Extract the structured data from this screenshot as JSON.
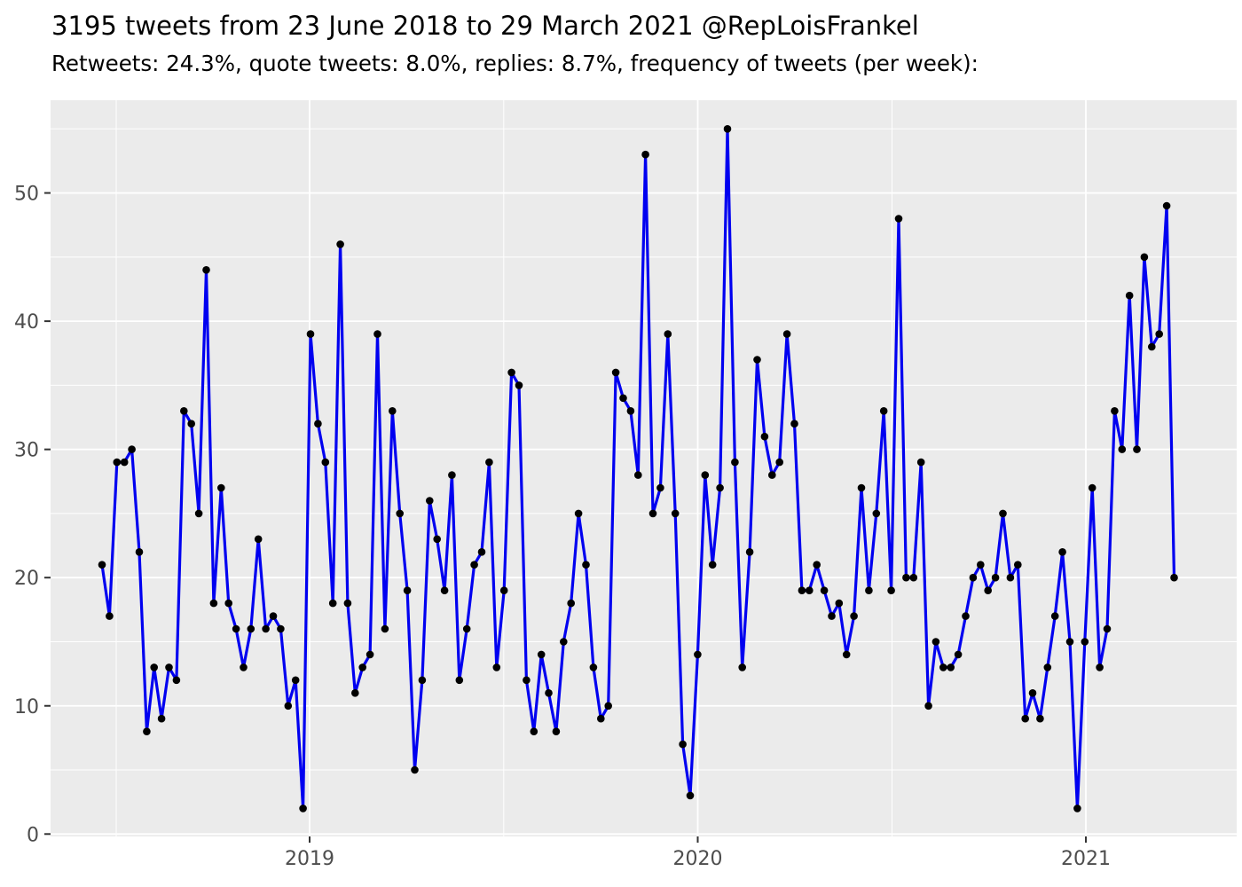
{
  "header": {
    "title": "3195 tweets from 23 June 2018 to 29 March 2021 @RepLoisFrankel",
    "subtitle": "Retweets: 24.3%, quote tweets: 8.0%, replies: 8.7%, frequency of tweets (per week):"
  },
  "chart_data": {
    "type": "line",
    "title": "3195 tweets from 23 June 2018 to 29 March 2021 @RepLoisFrankel",
    "subtitle": "Retweets: 24.3%, quote tweets: 8.0%, replies: 8.7%, frequency of tweets (per week):",
    "x_unit": "week",
    "x_start": "23 June 2018",
    "x_end": "29 March 2021",
    "x_tick_labels": [
      "2019",
      "2020",
      "2021"
    ],
    "y_ticks": [
      0,
      10,
      20,
      30,
      40,
      50
    ],
    "ylim": [
      0,
      57
    ],
    "grid": true,
    "legend": "none",
    "panel_bg": "#ebebeb",
    "grid_color": "#ffffff",
    "axis_text_color": "#4d4d4d",
    "tick_mark_color": "#333333",
    "line_color": "#0000f0",
    "point_color": "#000000",
    "series": [
      {
        "name": "tweets per week",
        "values": [
          21,
          17,
          29,
          29,
          30,
          22,
          8,
          13,
          9,
          13,
          12,
          33,
          32,
          25,
          44,
          18,
          27,
          18,
          16,
          13,
          16,
          23,
          16,
          17,
          16,
          10,
          12,
          2,
          39,
          32,
          29,
          18,
          46,
          18,
          11,
          13,
          14,
          39,
          16,
          33,
          25,
          19,
          5,
          12,
          26,
          23,
          19,
          28,
          12,
          16,
          21,
          22,
          29,
          13,
          19,
          36,
          35,
          12,
          8,
          14,
          11,
          8,
          15,
          18,
          25,
          21,
          13,
          9,
          10,
          36,
          34,
          33,
          28,
          53,
          25,
          27,
          39,
          25,
          7,
          3,
          14,
          28,
          21,
          27,
          55,
          29,
          13,
          22,
          37,
          31,
          28,
          29,
          39,
          32,
          19,
          19,
          21,
          19,
          17,
          18,
          14,
          17,
          27,
          19,
          25,
          33,
          19,
          48,
          20,
          20,
          29,
          10,
          15,
          13,
          13,
          14,
          17,
          20,
          21,
          19,
          20,
          25,
          20,
          21,
          9,
          11,
          9,
          13,
          17,
          22,
          15,
          2,
          15,
          27,
          13,
          16,
          33,
          30,
          42,
          30,
          45,
          38,
          39,
          49,
          20
        ]
      }
    ]
  }
}
